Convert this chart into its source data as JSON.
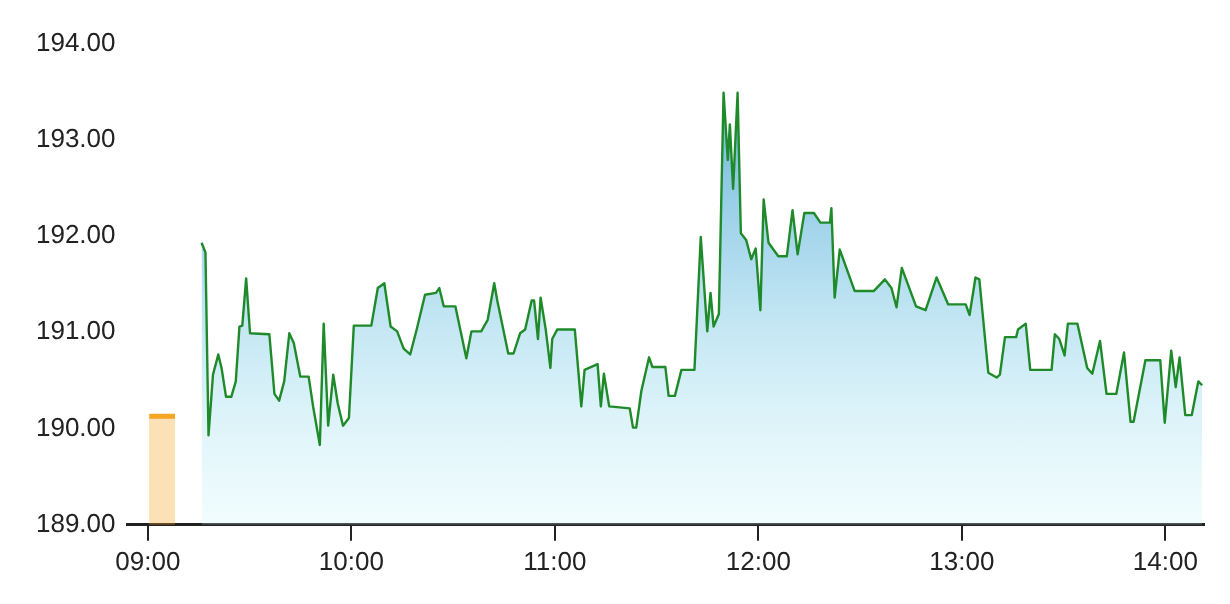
{
  "chart_data": {
    "type": "area",
    "xlim": [
      8.9,
      14.19
    ],
    "ylim": [
      189,
      194
    ],
    "xticks": [
      {
        "value": 9,
        "label": "09:00"
      },
      {
        "value": 10,
        "label": "10:00"
      },
      {
        "value": 11,
        "label": "11:00"
      },
      {
        "value": 12,
        "label": "12:00"
      },
      {
        "value": 13,
        "label": "13:00"
      },
      {
        "value": 14,
        "label": "14:00"
      }
    ],
    "yticks": [
      {
        "value": 189,
        "label": "189.00"
      },
      {
        "value": 190,
        "label": "190.00"
      },
      {
        "value": 191,
        "label": "191.00"
      },
      {
        "value": 192,
        "label": "192.00"
      },
      {
        "value": 193,
        "label": "193.00"
      },
      {
        "value": 194,
        "label": "194.00"
      }
    ],
    "grid": false,
    "legend": false,
    "series": [
      {
        "color": "#1f8a2a",
        "x": [
          9.264,
          9.283,
          9.298,
          9.32,
          9.346,
          9.362,
          9.384,
          9.41,
          9.432,
          9.45,
          9.464,
          9.483,
          9.502,
          9.597,
          9.622,
          9.645,
          9.67,
          9.695,
          9.717,
          9.749,
          9.79,
          9.812,
          9.845,
          9.864,
          9.886,
          9.911,
          9.933,
          9.959,
          9.988,
          10.012,
          10.098,
          10.13,
          10.162,
          10.193,
          10.225,
          10.257,
          10.289,
          10.321,
          10.362,
          10.416,
          10.432,
          10.454,
          10.511,
          10.565,
          10.59,
          10.638,
          10.67,
          10.702,
          10.717,
          10.771,
          10.797,
          10.829,
          10.854,
          10.886,
          10.898,
          10.917,
          10.93,
          10.955,
          10.978,
          10.987,
          11.012,
          11.098,
          11.13,
          11.146,
          11.21,
          11.226,
          11.241,
          11.267,
          11.368,
          11.384,
          11.4,
          11.425,
          11.463,
          11.479,
          11.543,
          11.559,
          11.59,
          11.622,
          11.686,
          11.717,
          11.749,
          11.765,
          11.78,
          11.806,
          11.829,
          11.85,
          11.86,
          11.876,
          11.898,
          11.914,
          11.94,
          11.965,
          11.987,
          12.01,
          12.026,
          12.05,
          12.098,
          12.14,
          12.168,
          12.193,
          12.226,
          12.273,
          12.305,
          12.352,
          12.359,
          12.375,
          12.4,
          12.473,
          12.568,
          12.622,
          12.654,
          12.679,
          12.705,
          12.775,
          12.822,
          12.876,
          12.933,
          13.019,
          13.038,
          13.067,
          13.086,
          13.13,
          13.171,
          13.187,
          13.212,
          13.267,
          13.276,
          13.314,
          13.336,
          13.441,
          13.457,
          13.479,
          13.505,
          13.521,
          13.568,
          13.616,
          13.641,
          13.679,
          13.711,
          13.759,
          13.797,
          13.829,
          13.844,
          13.902,
          13.975,
          13.997,
          14.029,
          14.051,
          14.07,
          14.098,
          14.13,
          14.162,
          14.181
        ],
        "values": [
          191.93,
          191.83,
          189.93,
          190.56,
          190.77,
          190.63,
          190.33,
          190.33,
          190.49,
          191.06,
          191.07,
          191.56,
          190.99,
          190.98,
          190.36,
          190.29,
          190.49,
          190.99,
          190.89,
          190.54,
          190.54,
          190.23,
          189.83,
          191.09,
          190.03,
          190.56,
          190.26,
          190.03,
          190.11,
          191.07,
          191.07,
          191.46,
          191.51,
          191.06,
          191.01,
          190.83,
          190.77,
          191.03,
          191.39,
          191.41,
          191.46,
          191.27,
          191.27,
          190.73,
          191.01,
          191.01,
          191.13,
          191.51,
          191.33,
          190.78,
          190.78,
          190.99,
          191.03,
          191.33,
          191.33,
          190.93,
          191.36,
          191.03,
          190.63,
          190.93,
          191.03,
          191.03,
          190.23,
          190.61,
          190.67,
          190.23,
          190.57,
          190.23,
          190.21,
          190.01,
          190.01,
          190.39,
          190.74,
          190.64,
          190.64,
          190.34,
          190.34,
          190.61,
          190.61,
          191.99,
          191.01,
          191.41,
          191.06,
          191.19,
          193.49,
          192.79,
          193.16,
          192.49,
          193.49,
          192.03,
          191.96,
          191.76,
          191.87,
          191.23,
          192.38,
          191.93,
          191.79,
          191.79,
          192.27,
          191.81,
          192.24,
          192.24,
          192.14,
          192.14,
          192.29,
          191.36,
          191.86,
          191.43,
          191.43,
          191.55,
          191.46,
          191.26,
          191.67,
          191.27,
          191.23,
          191.57,
          191.29,
          191.29,
          191.18,
          191.57,
          191.55,
          190.58,
          190.53,
          190.56,
          190.95,
          190.95,
          191.03,
          191.09,
          190.61,
          190.61,
          190.98,
          190.93,
          190.76,
          191.09,
          191.09,
          190.63,
          190.57,
          190.91,
          190.36,
          190.36,
          190.79,
          190.07,
          190.07,
          190.71,
          190.71,
          190.06,
          190.81,
          190.43,
          190.74,
          190.14,
          190.14,
          190.49,
          190.45
        ]
      },
      {
        "type": "bar",
        "color": "#f5a623",
        "x": [
          9.07
        ],
        "values": [
          190.15
        ]
      }
    ]
  }
}
